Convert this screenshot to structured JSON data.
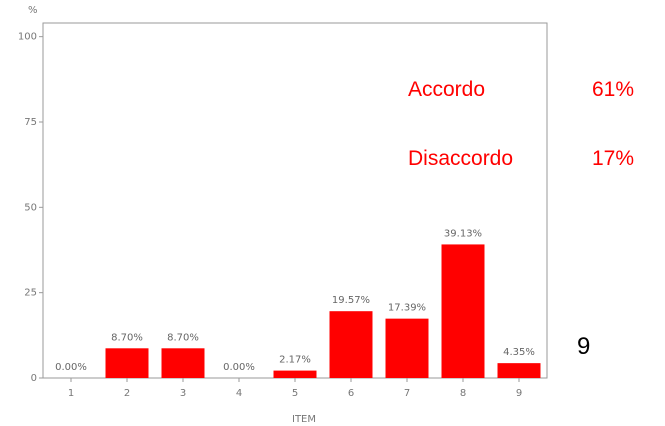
{
  "chart_data": {
    "type": "bar",
    "ylabel": "%",
    "xlabel": "ITEM",
    "ylim": [
      0,
      104
    ],
    "yticks": [
      0,
      25,
      50,
      75,
      100
    ],
    "categories": [
      "1",
      "2",
      "3",
      "4",
      "5",
      "6",
      "7",
      "8",
      "9"
    ],
    "values": [
      0.0,
      8.7,
      8.7,
      0.0,
      2.17,
      19.57,
      17.39,
      39.13,
      4.35
    ],
    "data_labels": [
      "0.00%",
      "8.70%",
      "8.70%",
      "0.00%",
      "2.17%",
      "19.57%",
      "17.39%",
      "39.13%",
      "4.35%"
    ],
    "bar_color": "#ff0000",
    "grid": false
  },
  "annotations": [
    {
      "label": "Accordo",
      "value": "61%"
    },
    {
      "label": "Disaccordo",
      "value": "17%"
    }
  ],
  "side_number": "9"
}
